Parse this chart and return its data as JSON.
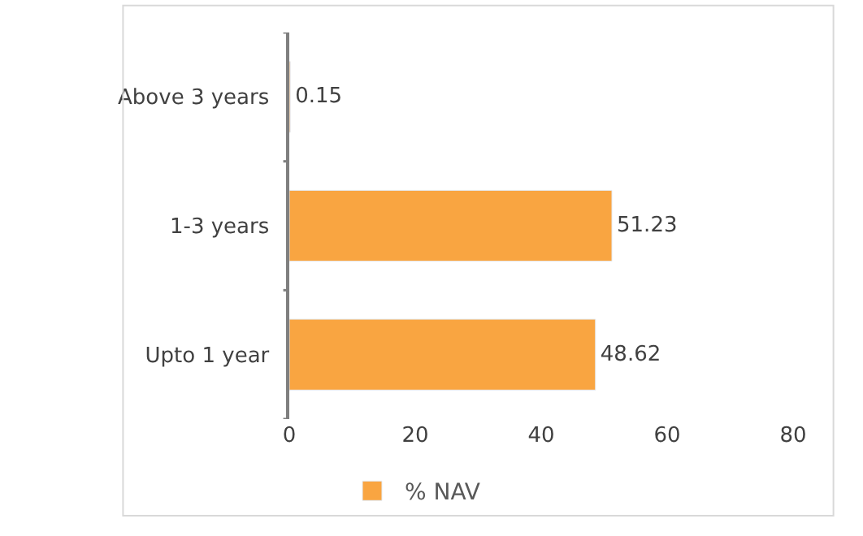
{
  "chart_data": {
    "type": "bar",
    "orientation": "horizontal",
    "categories": [
      "Above 3 years",
      "1-3 years",
      "Upto 1 year"
    ],
    "series": [
      {
        "name": "% NAV",
        "color": "#f9a541",
        "values": [
          0.15,
          51.23,
          48.62
        ]
      }
    ],
    "xlim": [
      0,
      80
    ],
    "xticks": [
      0,
      20,
      40,
      60,
      80
    ],
    "data_labels": true,
    "legend": "bottom"
  }
}
